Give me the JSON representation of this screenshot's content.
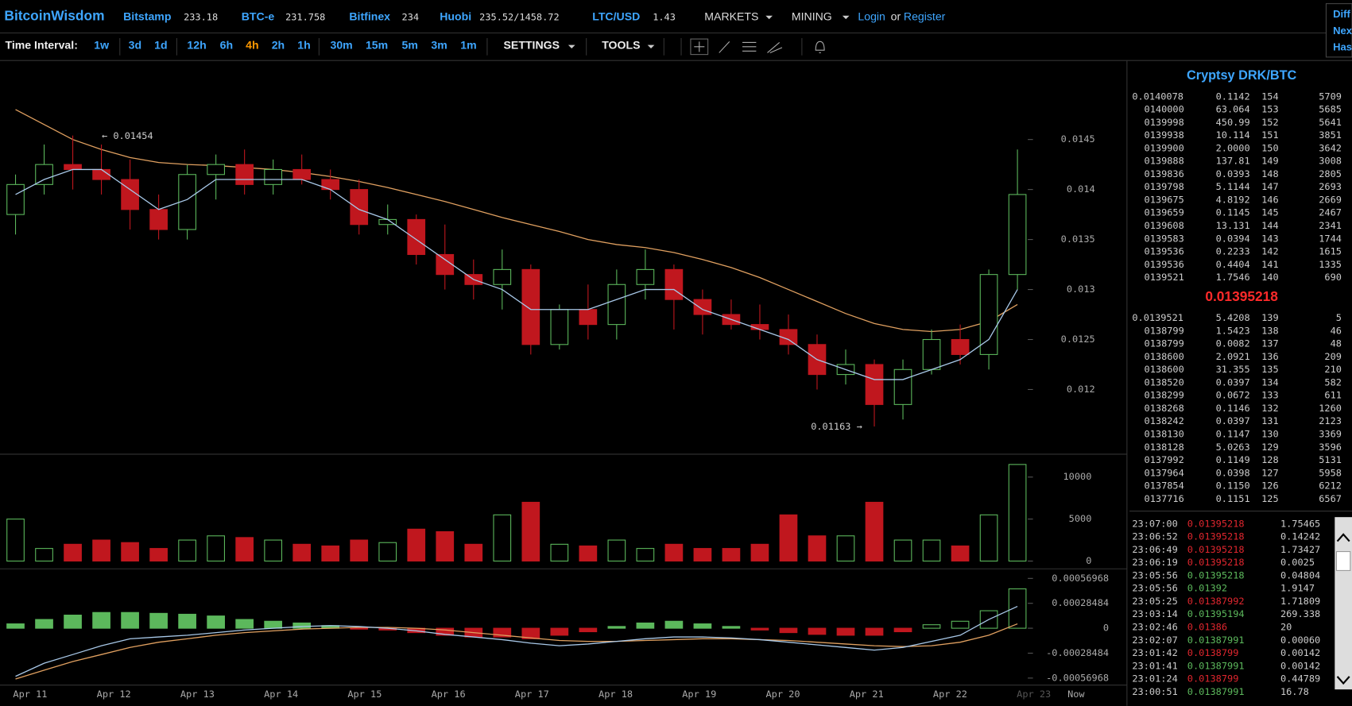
{
  "header": {
    "brand": "BitcoinWisdom",
    "markets": [
      {
        "name": "Bitstamp",
        "price": "233.18"
      },
      {
        "name": "BTC-e",
        "price": "231.758"
      },
      {
        "name": "Bitfinex",
        "price": "234"
      },
      {
        "name": "Huobi",
        "price": "235.52/1458.72"
      },
      {
        "name": "LTC/USD",
        "price": "1.43"
      }
    ],
    "menus": [
      "MARKETS",
      "MINING"
    ],
    "login": "Login",
    "or": "or",
    "register": "Register",
    "side": [
      "Diff",
      "Nex",
      "Has"
    ]
  },
  "toolbar": {
    "label": "Time Interval:",
    "intervals": [
      {
        "label": "1w",
        "color": "#3ea6ff"
      },
      {
        "label": "3d",
        "color": "#3ea6ff"
      },
      {
        "label": "1d",
        "color": "#3ea6ff"
      },
      {
        "label": "12h",
        "color": "#3ea6ff"
      },
      {
        "label": "6h",
        "color": "#3ea6ff"
      },
      {
        "label": "4h",
        "color": "#ff9900"
      },
      {
        "label": "2h",
        "color": "#3ea6ff"
      },
      {
        "label": "1h",
        "color": "#3ea6ff"
      },
      {
        "label": "30m",
        "color": "#3ea6ff"
      },
      {
        "label": "15m",
        "color": "#3ea6ff"
      },
      {
        "label": "5m",
        "color": "#3ea6ff"
      },
      {
        "label": "3m",
        "color": "#3ea6ff"
      },
      {
        "label": "1m",
        "color": "#3ea6ff"
      }
    ],
    "settings": "SETTINGS",
    "tools": "TOOLS"
  },
  "chart": {
    "up_color": "#5cb85c",
    "down_color": "#c0171e",
    "ma_fast_color": "#a8c8e8",
    "ma_slow_color": "#e0a060",
    "candles": [
      [
        0.01375,
        0.01415,
        0.01355,
        0.01405
      ],
      [
        0.01405,
        0.01445,
        0.01395,
        0.01425
      ],
      [
        0.01425,
        0.01454,
        0.014,
        0.0142
      ],
      [
        0.0142,
        0.01445,
        0.01395,
        0.0141
      ],
      [
        0.0141,
        0.0143,
        0.0136,
        0.0138
      ],
      [
        0.0138,
        0.01395,
        0.0135,
        0.0136
      ],
      [
        0.0136,
        0.01425,
        0.0135,
        0.01415
      ],
      [
        0.01415,
        0.01435,
        0.0139,
        0.01425
      ],
      [
        0.01425,
        0.0144,
        0.01395,
        0.01405
      ],
      [
        0.01405,
        0.0143,
        0.01395,
        0.0142
      ],
      [
        0.0142,
        0.01435,
        0.01405,
        0.0141
      ],
      [
        0.0141,
        0.0142,
        0.0139,
        0.014
      ],
      [
        0.014,
        0.0141,
        0.01355,
        0.01365
      ],
      [
        0.01365,
        0.01385,
        0.01355,
        0.0137
      ],
      [
        0.0137,
        0.01375,
        0.01325,
        0.01335
      ],
      [
        0.01335,
        0.01365,
        0.013,
        0.01315
      ],
      [
        0.01315,
        0.0133,
        0.0129,
        0.01305
      ],
      [
        0.01305,
        0.0134,
        0.0128,
        0.0132
      ],
      [
        0.0132,
        0.01325,
        0.01235,
        0.01245
      ],
      [
        0.01245,
        0.01285,
        0.0124,
        0.0128
      ],
      [
        0.0128,
        0.01305,
        0.0125,
        0.01265
      ],
      [
        0.01265,
        0.0132,
        0.0125,
        0.01305
      ],
      [
        0.01305,
        0.0134,
        0.0129,
        0.0132
      ],
      [
        0.0132,
        0.01325,
        0.0126,
        0.0129
      ],
      [
        0.0129,
        0.013,
        0.01255,
        0.01275
      ],
      [
        0.01275,
        0.0129,
        0.0126,
        0.01265
      ],
      [
        0.01265,
        0.01285,
        0.0125,
        0.0126
      ],
      [
        0.0126,
        0.01275,
        0.01235,
        0.01245
      ],
      [
        0.01245,
        0.01255,
        0.012,
        0.01215
      ],
      [
        0.01215,
        0.0124,
        0.01205,
        0.01225
      ],
      [
        0.01225,
        0.0123,
        0.01163,
        0.01185
      ],
      [
        0.01185,
        0.0123,
        0.0117,
        0.0122
      ],
      [
        0.0122,
        0.0126,
        0.01215,
        0.0125
      ],
      [
        0.0125,
        0.01265,
        0.01225,
        0.01235
      ],
      [
        0.01235,
        0.0132,
        0.0122,
        0.01315
      ],
      [
        0.01315,
        0.0144,
        0.013,
        0.01395
      ]
    ],
    "ma_fast": [
      0.01395,
      0.0141,
      0.0142,
      0.0142,
      0.014,
      0.0138,
      0.0139,
      0.0141,
      0.0141,
      0.0141,
      0.0141,
      0.014,
      0.0138,
      0.0137,
      0.0135,
      0.0133,
      0.0131,
      0.013,
      0.0128,
      0.0128,
      0.0128,
      0.0129,
      0.013,
      0.013,
      0.0128,
      0.0127,
      0.0126,
      0.0125,
      0.0123,
      0.0122,
      0.0121,
      0.0121,
      0.0122,
      0.0123,
      0.0125,
      0.013
    ],
    "ma_slow": [
      0.0148,
      0.01465,
      0.0145,
      0.0144,
      0.01432,
      0.01427,
      0.01425,
      0.01424,
      0.01422,
      0.0142,
      0.01417,
      0.01413,
      0.01408,
      0.01402,
      0.01395,
      0.01388,
      0.0138,
      0.01372,
      0.01365,
      0.01358,
      0.0135,
      0.01345,
      0.01342,
      0.01337,
      0.0133,
      0.01322,
      0.01312,
      0.013,
      0.01288,
      0.01276,
      0.01266,
      0.0126,
      0.01258,
      0.0126,
      0.01268,
      0.01285
    ],
    "ylim": [
      0.01137,
      0.01529
    ],
    "yticks": [
      0.012,
      0.0125,
      0.013,
      0.0135,
      0.014,
      0.0145
    ],
    "annotations": [
      "← 0.01454",
      "0.01163 →"
    ],
    "volume": [
      5000,
      1500,
      2000,
      2500,
      2200,
      1500,
      2500,
      3000,
      2800,
      2500,
      2000,
      1800,
      2500,
      2200,
      3800,
      3500,
      2000,
      5500,
      7000,
      2000,
      1800,
      2500,
      1500,
      2000,
      1500,
      1500,
      2000,
      5500,
      3000,
      3000,
      7000,
      2500,
      2500,
      1800,
      5500,
      11500
    ],
    "volume_ylim": [
      0,
      11900
    ],
    "volume_yticks": [
      0,
      5000,
      10000
    ],
    "macd_hist": [
      5e-05,
      0.0001,
      0.00015,
      0.00018,
      0.00018,
      0.00017,
      0.00016,
      0.00014,
      0.0001,
      8e-05,
      6e-05,
      3e-05,
      -1e-05,
      -2e-05,
      -5e-05,
      -8e-05,
      -0.0001,
      -0.0001,
      -0.00012,
      -8e-05,
      -4e-05,
      2e-05,
      6e-05,
      8e-05,
      5e-05,
      2e-05,
      -2e-05,
      -5e-05,
      -7e-05,
      -8e-05,
      -8e-05,
      -4e-05,
      4e-05,
      8e-05,
      0.0002,
      0.00045
    ],
    "macd": [
      -0.00055,
      -0.0004,
      -0.0003,
      -0.0002,
      -0.00012,
      -0.0001,
      -8e-05,
      -5e-05,
      -2e-05,
      0,
      2e-05,
      3e-05,
      2e-05,
      0,
      -3e-05,
      -7e-05,
      -0.0001,
      -0.00013,
      -0.00017,
      -0.0002,
      -0.00018,
      -0.00015,
      -0.00012,
      -0.0001,
      -0.0001,
      -0.00011,
      -0.00013,
      -0.00016,
      -0.00019,
      -0.00022,
      -0.00025,
      -0.00022,
      -0.00015,
      -8e-05,
      0.0001,
      0.00025
    ],
    "signal": [
      -0.00058,
      -0.00048,
      -0.00038,
      -0.0003,
      -0.00022,
      -0.00016,
      -0.00012,
      -8e-05,
      -5e-05,
      -3e-05,
      -1e-05,
      0,
      1e-05,
      1e-05,
      0,
      -2e-05,
      -5e-05,
      -8e-05,
      -0.00011,
      -0.00014,
      -0.00015,
      -0.00015,
      -0.00014,
      -0.00013,
      -0.00012,
      -0.00012,
      -0.00013,
      -0.00014,
      -0.00016,
      -0.00018,
      -0.0002,
      -0.00021,
      -0.0002,
      -0.00016,
      -8e-05,
      5e-05
    ],
    "macd_ylim": [
      -0.00065,
      0.00063
    ],
    "macd_yticks": [
      -0.00056968,
      -0.00028484,
      0,
      0.00028484,
      0.00056968
    ],
    "x_labels": [
      "Apr 11",
      "Apr 12",
      "Apr 13",
      "Apr 14",
      "Apr 15",
      "Apr 16",
      "Apr 17",
      "Apr 18",
      "Apr 19",
      "Apr 20",
      "Apr 21",
      "Apr 22",
      "Apr 23",
      "Now"
    ]
  },
  "orderbook": {
    "title": "Cryptsy DRK/BTC",
    "asks": [
      [
        "0.0140078",
        "0.1142",
        "154",
        "5709"
      ],
      [
        "0140000",
        "63.064",
        "153",
        "5685"
      ],
      [
        "0139998",
        "450.99",
        "152",
        "5641"
      ],
      [
        "0139938",
        "10.114",
        "151",
        "3851"
      ],
      [
        "0139900",
        "2.0000",
        "150",
        "3642"
      ],
      [
        "0139888",
        "137.81",
        "149",
        "3008"
      ],
      [
        "0139836",
        "0.0393",
        "148",
        "2805"
      ],
      [
        "0139798",
        "5.1144",
        "147",
        "2693"
      ],
      [
        "0139675",
        "4.8192",
        "146",
        "2669"
      ],
      [
        "0139659",
        "0.1145",
        "145",
        "2467"
      ],
      [
        "0139608",
        "13.131",
        "144",
        "2341"
      ],
      [
        "0139583",
        "0.0394",
        "143",
        "1744"
      ],
      [
        "0139536",
        "0.2233",
        "142",
        "1615"
      ],
      [
        "0139536",
        "0.4404",
        "141",
        "1335"
      ],
      [
        "0139521",
        "1.7546",
        "140",
        "690"
      ]
    ],
    "last": "0.01395218",
    "bids": [
      [
        "0.0139521",
        "5.4208",
        "139",
        "5"
      ],
      [
        "0138799",
        "1.5423",
        "138",
        "46"
      ],
      [
        "0138799",
        "0.0082",
        "137",
        "48"
      ],
      [
        "0138600",
        "2.0921",
        "136",
        "209"
      ],
      [
        "0138600",
        "31.355",
        "135",
        "210"
      ],
      [
        "0138520",
        "0.0397",
        "134",
        "582"
      ],
      [
        "0138299",
        "0.0672",
        "133",
        "611"
      ],
      [
        "0138268",
        "0.1146",
        "132",
        "1260"
      ],
      [
        "0138242",
        "0.0397",
        "131",
        "2123"
      ],
      [
        "0138130",
        "0.1147",
        "130",
        "3369"
      ],
      [
        "0138128",
        "5.0263",
        "129",
        "3596"
      ],
      [
        "0137992",
        "0.1149",
        "128",
        "5131"
      ],
      [
        "0137964",
        "0.0398",
        "127",
        "5958"
      ],
      [
        "0137854",
        "0.1150",
        "126",
        "6212"
      ],
      [
        "0137716",
        "0.1151",
        "125",
        "6567"
      ]
    ]
  },
  "trades": [
    {
      "time": "23:07:00",
      "price": "0.01395218",
      "amount": "1.75465",
      "color": "#e0262e"
    },
    {
      "time": "23:06:52",
      "price": "0.01395218",
      "amount": "0.14242",
      "color": "#e0262e"
    },
    {
      "time": "23:06:49",
      "price": "0.01395218",
      "amount": "1.73427",
      "color": "#e0262e"
    },
    {
      "time": "23:06:19",
      "price": "0.01395218",
      "amount": "0.0025",
      "color": "#e0262e"
    },
    {
      "time": "23:05:56",
      "price": "0.01395218",
      "amount": "0.04804",
      "color": "#5cb85c"
    },
    {
      "time": "23:05:56",
      "price": "0.01392",
      "amount": "1.9147",
      "color": "#5cb85c"
    },
    {
      "time": "23:05:25",
      "price": "0.01387992",
      "amount": "1.71809",
      "color": "#e0262e"
    },
    {
      "time": "23:03:14",
      "price": "0.01395194",
      "amount": "269.338",
      "color": "#5cb85c"
    },
    {
      "time": "23:02:46",
      "price": "0.01386",
      "amount": "20",
      "color": "#e0262e"
    },
    {
      "time": "23:02:07",
      "price": "0.01387991",
      "amount": "0.00060",
      "color": "#5cb85c"
    },
    {
      "time": "23:01:42",
      "price": "0.0138799",
      "amount": "0.00142",
      "color": "#e0262e"
    },
    {
      "time": "23:01:41",
      "price": "0.01387991",
      "amount": "0.00142",
      "color": "#5cb85c"
    },
    {
      "time": "23:01:24",
      "price": "0.0138799",
      "amount": "0.44789",
      "color": "#e0262e"
    },
    {
      "time": "23:00:51",
      "price": "0.01387991",
      "amount": "16.78",
      "color": "#5cb85c"
    }
  ]
}
